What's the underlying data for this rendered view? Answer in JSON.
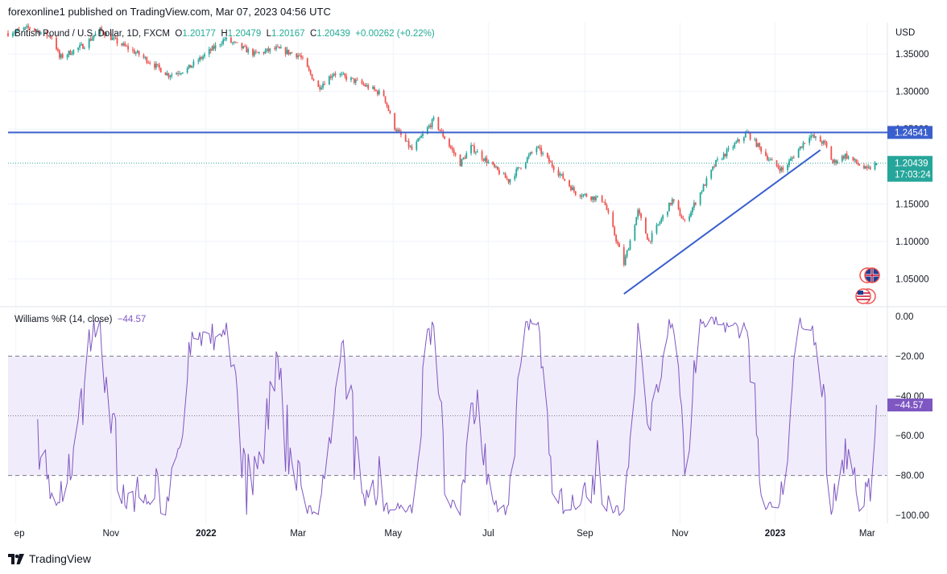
{
  "header": {
    "published_line": "forexonline1 published on TradingView.com, Mar 07, 2023 04:56 UTC"
  },
  "footer": {
    "brand": "TradingView"
  },
  "colors": {
    "up": "#26a69a",
    "down": "#ef5350",
    "line_blue": "#3a5fcd",
    "wr_line": "#7e57c2",
    "wr_band": "#f1ecfb",
    "grid": "#f0f3fa",
    "axis_text": "#131722"
  },
  "legend": {
    "symbol": "British Pound / U.S. Dollar, 1D, FXCM",
    "o_label": "O",
    "o_value": "1.20177",
    "h_label": "H",
    "h_value": "1.20479",
    "l_label": "L",
    "l_value": "1.20167",
    "c_label": "C",
    "c_value": "1.20439",
    "change": "+0.00262 (+0.22%)"
  },
  "indicator_legend": {
    "name": "Williams %R (14, close)",
    "value": "−44.57"
  },
  "chart_data": [
    {
      "type": "candlestick",
      "title": "British Pound / U.S. Dollar, 1D, FXCM",
      "currency": "USD",
      "x_tick_labels": [
        "ep",
        "Nov",
        "2022",
        "Mar",
        "May",
        "Jul",
        "Sep",
        "Nov",
        "2023",
        "Mar"
      ],
      "x_ticks": [
        {
          "label": "ep",
          "date": "2021-09-01"
        },
        {
          "label": "Nov",
          "date": "2021-11-01"
        },
        {
          "label": "2022",
          "date": "2022-01-01"
        },
        {
          "label": "Mar",
          "date": "2022-03-01"
        },
        {
          "label": "May",
          "date": "2022-05-01"
        },
        {
          "label": "Jul",
          "date": "2022-07-01"
        },
        {
          "label": "Sep",
          "date": "2022-09-01"
        },
        {
          "label": "Nov",
          "date": "2022-11-01"
        },
        {
          "label": "2023",
          "date": "2023-01-01"
        },
        {
          "label": "Mar",
          "date": "2023-03-01"
        }
      ],
      "y_tick_labels": [
        "1.35000",
        "1.30000",
        "1.25000",
        "1.20000",
        "1.15000",
        "1.10000",
        "1.05000"
      ],
      "y_ticks": [
        1.35,
        1.3,
        1.25,
        1.2,
        1.15,
        1.1,
        1.05
      ],
      "ylim": [
        1.014,
        1.392
      ],
      "grid": true,
      "price_path": [
        {
          "date": "2021-08-27",
          "close": 1.378
        },
        {
          "date": "2021-09-10",
          "close": 1.385
        },
        {
          "date": "2021-09-25",
          "close": 1.372
        },
        {
          "date": "2021-09-29",
          "close": 1.345
        },
        {
          "date": "2021-10-15",
          "close": 1.362
        },
        {
          "date": "2021-10-25",
          "close": 1.382
        },
        {
          "date": "2021-11-05",
          "close": 1.366
        },
        {
          "date": "2021-11-20",
          "close": 1.348
        },
        {
          "date": "2021-12-08",
          "close": 1.322
        },
        {
          "date": "2021-12-20",
          "close": 1.33
        },
        {
          "date": "2022-01-13",
          "close": 1.37
        },
        {
          "date": "2022-02-01",
          "close": 1.35
        },
        {
          "date": "2022-02-15",
          "close": 1.357
        },
        {
          "date": "2022-03-02",
          "close": 1.348
        },
        {
          "date": "2022-03-14",
          "close": 1.305
        },
        {
          "date": "2022-03-24",
          "close": 1.325
        },
        {
          "date": "2022-04-12",
          "close": 1.309
        },
        {
          "date": "2022-04-25",
          "close": 1.295
        },
        {
          "date": "2022-05-01",
          "close": 1.255
        },
        {
          "date": "2022-05-13",
          "close": 1.222
        },
        {
          "date": "2022-05-27",
          "close": 1.262
        },
        {
          "date": "2022-06-13",
          "close": 1.204
        },
        {
          "date": "2022-06-20",
          "close": 1.226
        },
        {
          "date": "2022-07-14",
          "close": 1.181
        },
        {
          "date": "2022-08-01",
          "close": 1.226
        },
        {
          "date": "2022-08-26",
          "close": 1.165
        },
        {
          "date": "2022-09-13",
          "close": 1.155
        },
        {
          "date": "2022-09-26",
          "close": 1.07
        },
        {
          "date": "2022-10-05",
          "close": 1.14
        },
        {
          "date": "2022-10-12",
          "close": 1.1
        },
        {
          "date": "2022-10-27",
          "close": 1.155
        },
        {
          "date": "2022-11-04",
          "close": 1.125
        },
        {
          "date": "2022-11-24",
          "close": 1.205
        },
        {
          "date": "2022-12-14",
          "close": 1.245
        },
        {
          "date": "2022-12-30",
          "close": 1.205
        },
        {
          "date": "2023-01-06",
          "close": 1.195
        },
        {
          "date": "2023-01-23",
          "close": 1.242
        },
        {
          "date": "2023-02-02",
          "close": 1.23
        },
        {
          "date": "2023-02-07",
          "close": 1.205
        },
        {
          "date": "2023-02-15",
          "close": 1.215
        },
        {
          "date": "2023-03-01",
          "close": 1.195
        },
        {
          "date": "2023-03-07",
          "close": 1.20439
        }
      ],
      "horizontal_line": {
        "value": 1.24541,
        "label": "1.24541"
      },
      "trendline": {
        "from": {
          "date": "2022-09-26",
          "value": 1.03
        },
        "to": {
          "date": "2023-01-30",
          "value": 1.222
        }
      },
      "last_price": {
        "value": 1.20439,
        "label": "1.20439",
        "countdown": "17:03:24"
      }
    },
    {
      "type": "line",
      "name": "Williams %R (14, close)",
      "last_value": -44.57,
      "last_label": "−44.57",
      "y_tick_labels": [
        "0.00",
        "−20.00",
        "−40.00",
        "−60.00",
        "−80.00",
        "−100.00"
      ],
      "y_ticks": [
        0,
        -20,
        -40,
        -60,
        -80,
        -100
      ],
      "ylim": [
        -104,
        4
      ],
      "bands": {
        "upper": -20,
        "middle": -50,
        "lower": -80
      },
      "grid": true
    }
  ]
}
